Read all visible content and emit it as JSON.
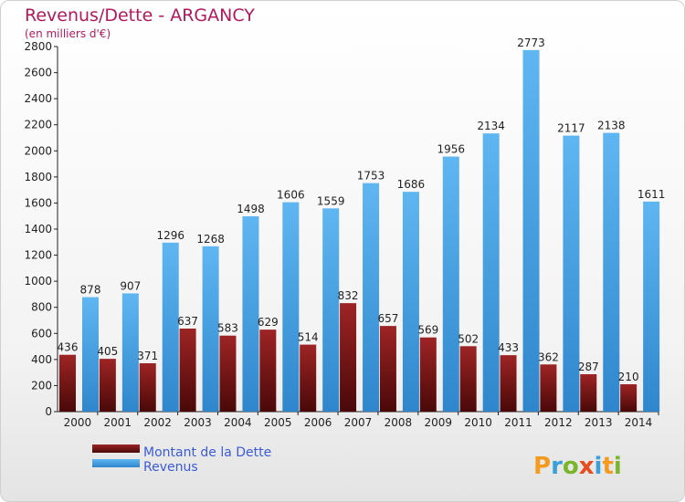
{
  "chart_data": {
    "type": "bar",
    "title": "Revenus/Dette - ARGANCY",
    "subtitle": "(en milliers d'€)",
    "categories": [
      "2000",
      "2001",
      "2002",
      "2003",
      "2004",
      "2005",
      "2006",
      "2007",
      "2008",
      "2009",
      "2010",
      "2011",
      "2012",
      "2013",
      "2014"
    ],
    "series": [
      {
        "name": "Montant de la Dette",
        "color": "#8b1a1a",
        "values": [
          436,
          405,
          371,
          637,
          583,
          629,
          514,
          832,
          657,
          569,
          502,
          433,
          362,
          287,
          210
        ]
      },
      {
        "name": "Revenus",
        "color": "#4aa3e6",
        "values": [
          878,
          907,
          1296,
          1268,
          1498,
          1606,
          1559,
          1753,
          1686,
          1956,
          2134,
          2773,
          2117,
          2138,
          1611
        ]
      }
    ],
    "ylim": [
      0,
      2800
    ],
    "yticks": [
      0,
      200,
      400,
      600,
      800,
      1000,
      1200,
      1400,
      1600,
      1800,
      2000,
      2200,
      2400,
      2600,
      2800
    ],
    "grid": false,
    "legend": "bottom-left"
  },
  "logo": {
    "letters": [
      "P",
      "r",
      "o",
      "x",
      "i",
      "t",
      "i"
    ],
    "colors": [
      "#f29b1f",
      "#3ba0d9",
      "#7ab62b",
      "#e74c1c",
      "#3ba0d9",
      "#f29b1f",
      "#7ab62b"
    ]
  }
}
